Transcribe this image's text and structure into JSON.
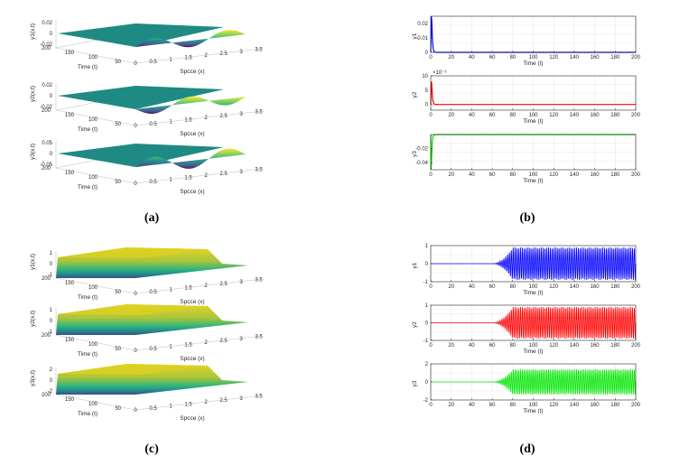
{
  "panel_labels": [
    "(a)",
    "(b)",
    "(c)",
    "(d)"
  ],
  "chart_data": [
    {
      "panel": "(a)",
      "type": "surface",
      "rows": [
        {
          "zlabel": "y1(x,t)",
          "z_ticks": [
            "0.02",
            "0",
            "-0.02"
          ],
          "zlim": [
            -0.025,
            0.025
          ]
        },
        {
          "zlabel": "y2(x,t)",
          "z_ticks": [
            "0.02",
            "0",
            "-0.02"
          ],
          "zlim": [
            -0.025,
            0.025
          ]
        },
        {
          "zlabel": "y3(x,t)",
          "z_ticks": [
            "0.05",
            "0",
            "-0.05"
          ],
          "zlim": [
            -0.06,
            0.06
          ]
        }
      ],
      "xlabel": "Spcce (x)",
      "ylabel": "Time (t)",
      "x_ticks": [
        "0",
        "0.5",
        "1",
        "1.5",
        "2",
        "2.5",
        "3",
        "3.5"
      ],
      "y_ticks": [
        "200",
        "150",
        "100",
        "50"
      ],
      "colormap": [
        "#440154",
        "#3b528b",
        "#21918c",
        "#5ec962",
        "#fde725"
      ]
    },
    {
      "panel": "(b)",
      "type": "line",
      "xlabel": "Time (t)",
      "x_ticks": [
        "0",
        "20",
        "40",
        "60",
        "80",
        "100",
        "120",
        "140",
        "160",
        "180",
        "200"
      ],
      "xlim": [
        0,
        200
      ],
      "grid": true,
      "series": [
        {
          "ylabel": "y1",
          "color": "#0000ff",
          "ylim": [
            0,
            0.025
          ],
          "y_ticks": [
            "0.02",
            "0.01",
            "0"
          ],
          "exponent": "",
          "peak": 0.025,
          "peak_t": 1,
          "decay_to": 0
        },
        {
          "ylabel": "y2",
          "color": "#ff0000",
          "ylim": [
            -2,
            10
          ],
          "y_ticks": [
            "10",
            "5",
            "0"
          ],
          "exponent": "×10⁻³",
          "peak": 8,
          "peak_t": 1,
          "decay_to": 0
        },
        {
          "ylabel": "y3",
          "color": "#00dd00",
          "ylim": [
            -0.05,
            0
          ],
          "y_ticks": [
            "-0.02",
            "-0.04"
          ],
          "exponent": "",
          "peak": -0.05,
          "peak_t": 0.5,
          "decay_to": 0
        }
      ]
    },
    {
      "panel": "(c)",
      "type": "surface",
      "rows": [
        {
          "zlabel": "y1(x,t)",
          "z_ticks": [
            "1",
            "0",
            "-1"
          ],
          "zlim": [
            -1,
            1
          ]
        },
        {
          "zlabel": "y2(x,t)",
          "z_ticks": [
            "1",
            "0",
            "-1"
          ],
          "zlim": [
            -1,
            1
          ]
        },
        {
          "zlabel": "y3(x,t)",
          "z_ticks": [
            "2",
            "0",
            "-2"
          ],
          "zlim": [
            -2,
            2
          ]
        }
      ],
      "xlabel": "Spcce (x)",
      "ylabel": "Time (t)",
      "x_ticks": [
        "0",
        "0.5",
        "1",
        "1.5",
        "2",
        "2.5",
        "3",
        "3.5"
      ],
      "y_ticks": [
        "200",
        "150",
        "100",
        "50"
      ],
      "colormap": [
        "#440154",
        "#3b528b",
        "#21918c",
        "#5ec962",
        "#fde725"
      ]
    },
    {
      "panel": "(d)",
      "type": "line",
      "xlabel": "Time (t)",
      "x_ticks": [
        "0",
        "20",
        "40",
        "60",
        "80",
        "100",
        "120",
        "140",
        "160",
        "180",
        "200"
      ],
      "xlim": [
        0,
        200
      ],
      "grid": true,
      "series": [
        {
          "ylabel": "y1",
          "color": "#0000ff",
          "ylim": [
            -1,
            1
          ],
          "y_ticks": [
            "1",
            "0",
            "-1"
          ],
          "onset_t": 60,
          "saturate_t": 80,
          "amplitude": 0.9
        },
        {
          "ylabel": "y2",
          "color": "#ff0000",
          "ylim": [
            -1,
            1
          ],
          "y_ticks": [
            "1",
            "0",
            "-1"
          ],
          "onset_t": 60,
          "saturate_t": 80,
          "amplitude": 0.9
        },
        {
          "ylabel": "y3",
          "color": "#00e600",
          "ylim": [
            -2,
            2
          ],
          "y_ticks": [
            "2",
            "0",
            "-2"
          ],
          "onset_t": 60,
          "saturate_t": 80,
          "amplitude": 1.4
        }
      ]
    }
  ]
}
